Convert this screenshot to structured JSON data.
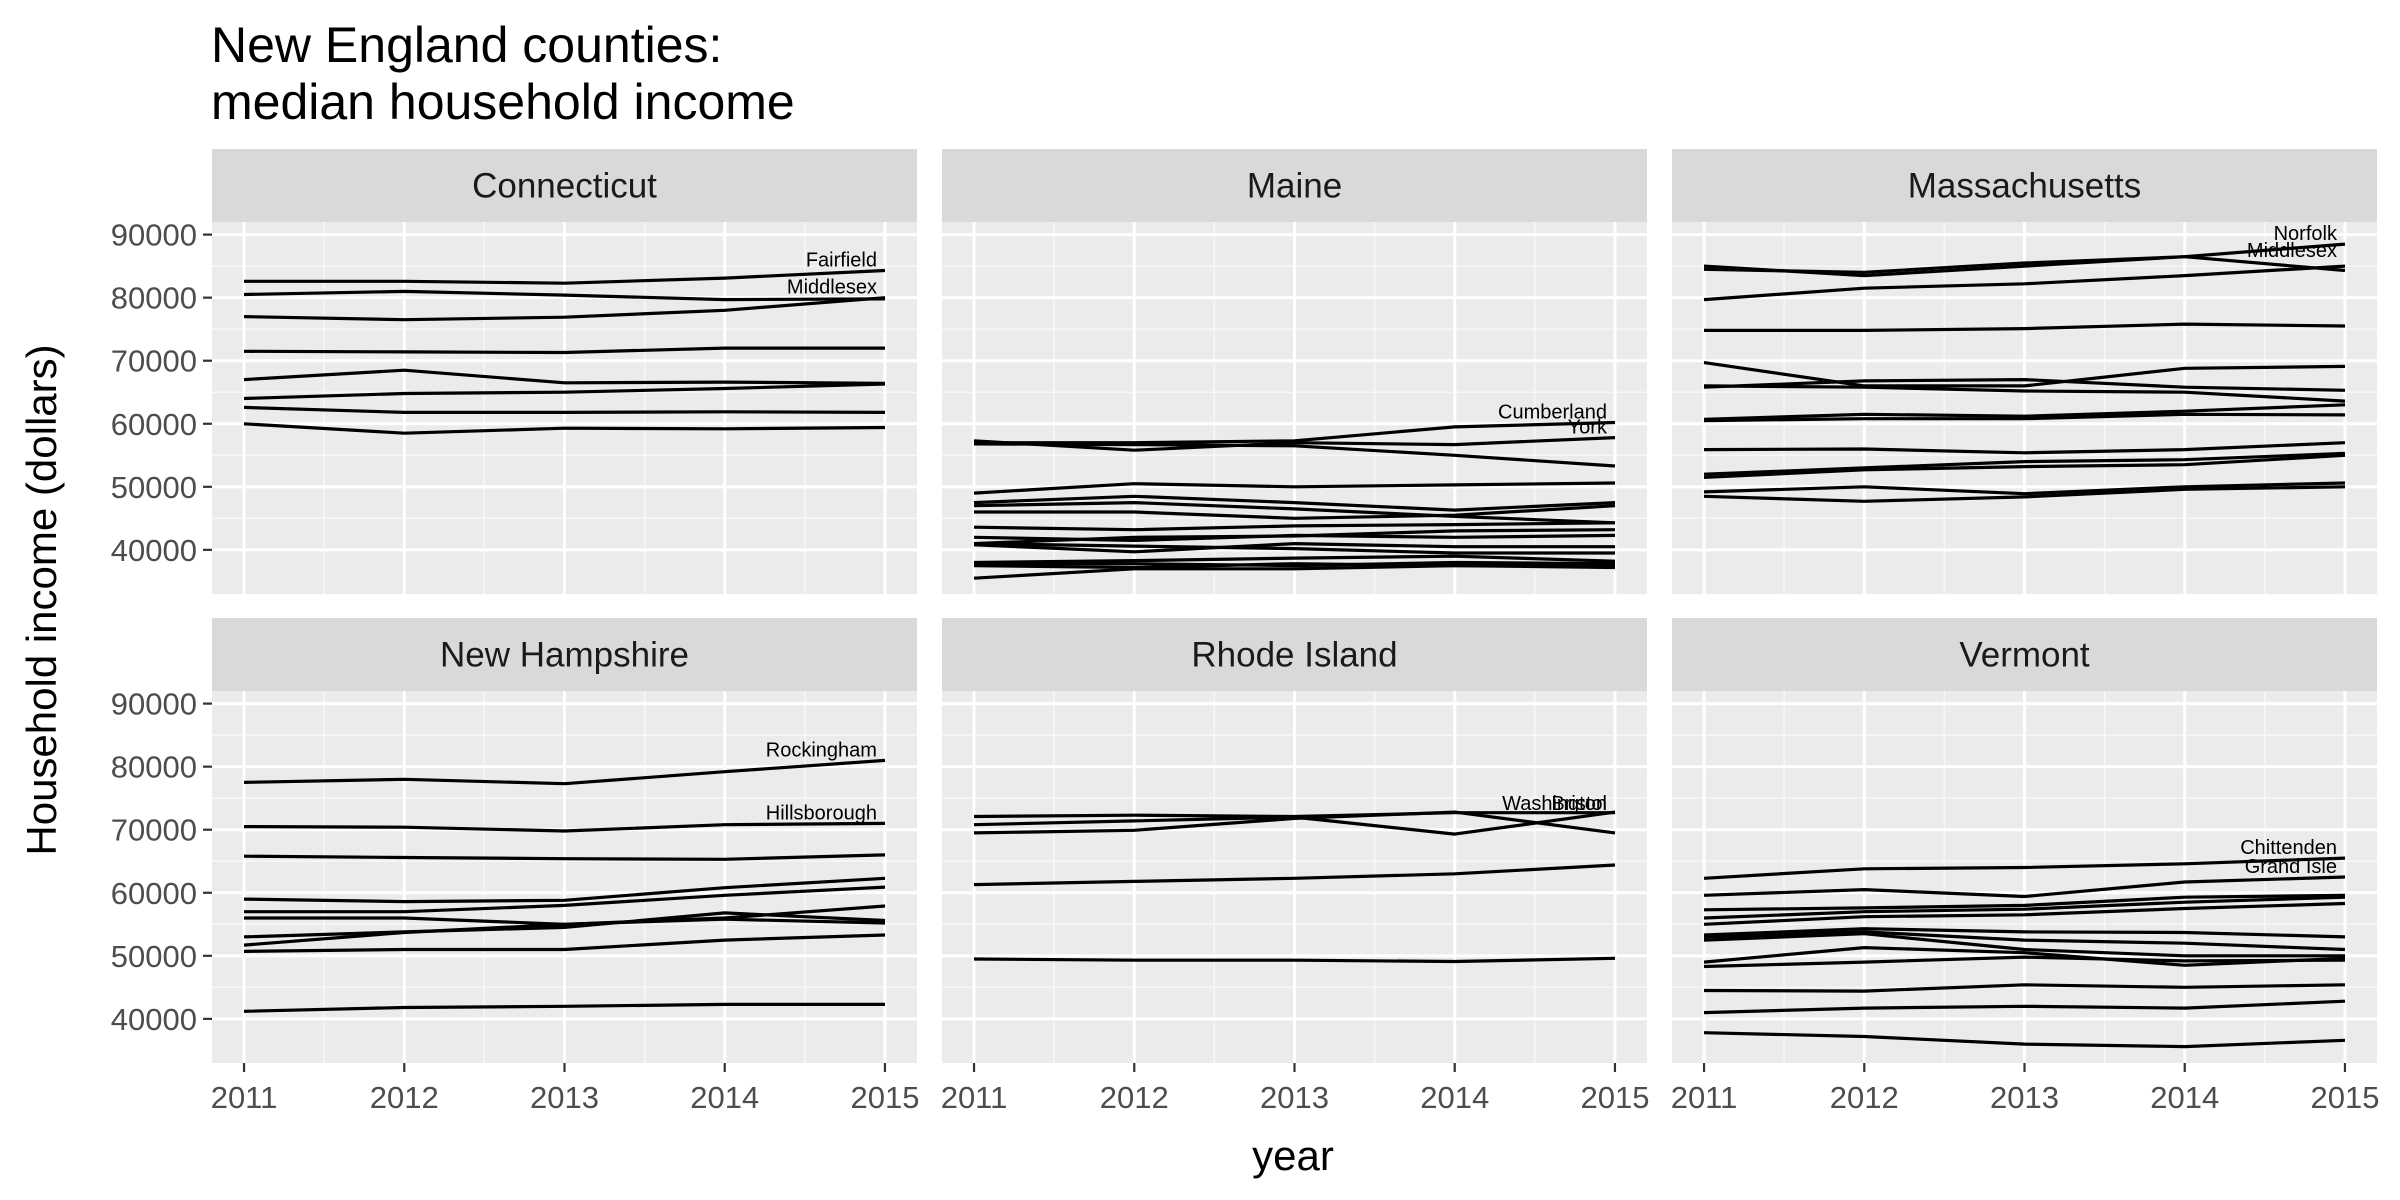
{
  "title": [
    "New England counties:",
    "median household income"
  ],
  "xlabel": "year",
  "ylabel": "Household income (dollars)",
  "chart_data": {
    "type": "line",
    "title": "New England counties: median household income",
    "xlabel": "year",
    "ylabel": "Household income (dollars)",
    "x": [
      2011,
      2012,
      2013,
      2014,
      2015
    ],
    "xlim": [
      2010.8,
      2015.2
    ],
    "ylim": [
      33000,
      92000
    ],
    "y_ticks": [
      40000,
      50000,
      60000,
      70000,
      80000,
      90000
    ],
    "x_ticks": [
      2011,
      2012,
      2013,
      2014,
      2015
    ],
    "grid": true,
    "facets": [
      {
        "name": "Connecticut",
        "labels": [
          {
            "text": "Fairfield",
            "y": 84300
          },
          {
            "text": "Middlesex",
            "y": 80000
          }
        ],
        "series": [
          {
            "name": "Fairfield",
            "values": [
              82600,
              82600,
              82300,
              83100,
              84300
            ]
          },
          {
            "name": "Middlesex",
            "values": [
              80500,
              81000,
              80400,
              79700,
              79800
            ]
          },
          {
            "values": [
              77000,
              76500,
              76900,
              78000,
              80000
            ]
          },
          {
            "values": [
              71500,
              71400,
              71300,
              72000,
              72000
            ]
          },
          {
            "values": [
              67000,
              68500,
              66500,
              66600,
              66400
            ]
          },
          {
            "values": [
              64000,
              64800,
              65000,
              65600,
              66300
            ]
          },
          {
            "values": [
              62600,
              61800,
              61800,
              61900,
              61800
            ]
          },
          {
            "values": [
              60000,
              58500,
              59300,
              59200,
              59400
            ]
          }
        ]
      },
      {
        "name": "Maine",
        "labels": [
          {
            "text": "Cumberland",
            "y": 60200
          },
          {
            "text": "York",
            "y": 57800
          }
        ],
        "series": [
          {
            "name": "Cumberland",
            "values": [
              57000,
              57000,
              57300,
              59500,
              60200
            ]
          },
          {
            "name": "York",
            "values": [
              57300,
              55800,
              57000,
              56700,
              57800
            ]
          },
          {
            "values": [
              56800,
              56700,
              56500,
              55000,
              53300
            ]
          },
          {
            "values": [
              49000,
              50500,
              50000,
              50300,
              50600
            ]
          },
          {
            "values": [
              47500,
              48500,
              47500,
              46300,
              47500
            ]
          },
          {
            "values": [
              47000,
              47500,
              46500,
              45300,
              44300
            ]
          },
          {
            "values": [
              46000,
              46000,
              45000,
              45500,
              47000
            ]
          },
          {
            "values": [
              43600,
              43200,
              43800,
              44000,
              44300
            ]
          },
          {
            "values": [
              41000,
              42000,
              42200,
              43000,
              43200
            ]
          },
          {
            "values": [
              42000,
              41500,
              42300,
              42000,
              42300
            ]
          },
          {
            "values": [
              40800,
              39700,
              41000,
              40500,
              40500
            ]
          },
          {
            "values": [
              41000,
              40600,
              40200,
              39500,
              39500
            ]
          },
          {
            "values": [
              38000,
              38300,
              38700,
              39000,
              38200
            ]
          },
          {
            "values": [
              37800,
              37800,
              37500,
              38000,
              37800
            ]
          },
          {
            "values": [
              37500,
              37200,
              37800,
              37500,
              37200
            ]
          },
          {
            "values": [
              35500,
              37000,
              37000,
              37500,
              37500
            ]
          }
        ]
      },
      {
        "name": "Massachusetts",
        "labels": [
          {
            "text": "Norfolk",
            "y": 88500
          },
          {
            "text": "Middlesex",
            "y": 85800
          }
        ],
        "series": [
          {
            "name": "Norfolk",
            "values": [
              84500,
              84000,
              85500,
              86500,
              88500
            ]
          },
          {
            "name": "Middlesex",
            "values": [
              85000,
              83500,
              85000,
              86500,
              84300
            ]
          },
          {
            "values": [
              79700,
              81500,
              82200,
              83500,
              85000
            ]
          },
          {
            "values": [
              74800,
              74800,
              75100,
              75800,
              75500
            ]
          },
          {
            "values": [
              69700,
              66000,
              66000,
              68800,
              69100
            ]
          },
          {
            "values": [
              65800,
              66800,
              67000,
              65800,
              65300
            ]
          },
          {
            "values": [
              66000,
              65800,
              65200,
              65000,
              63600
            ]
          },
          {
            "values": [
              60700,
              61500,
              61200,
              62000,
              63000
            ]
          },
          {
            "values": [
              60500,
              60800,
              60800,
              61500,
              61400
            ]
          },
          {
            "values": [
              55900,
              56000,
              55400,
              55900,
              57000
            ]
          },
          {
            "values": [
              52000,
              53000,
              54000,
              54300,
              55300
            ]
          },
          {
            "values": [
              51500,
              52700,
              53200,
              53500,
              55000
            ]
          },
          {
            "values": [
              49200,
              50000,
              48900,
              50000,
              50600
            ]
          },
          {
            "values": [
              48500,
              47700,
              48400,
              49600,
              50000
            ]
          }
        ]
      },
      {
        "name": "New Hampshire",
        "labels": [
          {
            "text": "Rockingham",
            "y": 81000
          },
          {
            "text": "Hillsborough",
            "y": 71000
          }
        ],
        "series": [
          {
            "name": "Rockingham",
            "values": [
              77500,
              78000,
              77300,
              79200,
              81000
            ]
          },
          {
            "name": "Hillsborough",
            "values": [
              70500,
              70400,
              69800,
              70800,
              71000
            ]
          },
          {
            "values": [
              65800,
              65600,
              65400,
              65300,
              66000
            ]
          },
          {
            "values": [
              59000,
              58600,
              58800,
              60800,
              62300
            ]
          },
          {
            "values": [
              57000,
              57000,
              58000,
              59600,
              60900
            ]
          },
          {
            "values": [
              56000,
              56000,
              55000,
              56000,
              57900
            ]
          },
          {
            "values": [
              53000,
              53800,
              54500,
              56800,
              55600
            ]
          },
          {
            "values": [
              51700,
              53700,
              55000,
              55800,
              55200
            ]
          },
          {
            "values": [
              50700,
              51000,
              51000,
              52500,
              53300
            ]
          },
          {
            "values": [
              41200,
              41800,
              42000,
              42300,
              42300
            ]
          }
        ]
      },
      {
        "name": "Rhode Island",
        "labels": [
          {
            "text": "Washington",
            "y": 72500
          },
          {
            "text": "Bristol",
            "y": 72500
          }
        ],
        "series": [
          {
            "name": "Washington",
            "values": [
              72100,
              72300,
              72100,
              72700,
              72700
            ]
          },
          {
            "name": "Bristol",
            "values": [
              70800,
              71400,
              72000,
              69300,
              72800
            ]
          },
          {
            "values": [
              69500,
              69900,
              71800,
              72800,
              69500
            ]
          },
          {
            "values": [
              61300,
              61800,
              62300,
              63000,
              64400
            ]
          },
          {
            "values": [
              49500,
              49300,
              49300,
              49100,
              49600
            ]
          }
        ]
      },
      {
        "name": "Vermont",
        "labels": [
          {
            "text": "Chittenden",
            "y": 65500
          },
          {
            "text": "Grand Isle",
            "y": 62500
          }
        ],
        "series": [
          {
            "name": "Chittenden",
            "values": [
              62300,
              63800,
              64000,
              64600,
              65500
            ]
          },
          {
            "name": "Grand Isle",
            "values": [
              59600,
              60500,
              59400,
              61700,
              62500
            ]
          },
          {
            "values": [
              57300,
              57600,
              58000,
              59300,
              59600
            ]
          },
          {
            "values": [
              56000,
              57000,
              57400,
              58500,
              59300
            ]
          },
          {
            "values": [
              55000,
              56200,
              56500,
              57500,
              58300
            ]
          },
          {
            "values": [
              53300,
              54300,
              53800,
              53700,
              53000
            ]
          },
          {
            "values": [
              53000,
              53800,
              52500,
              52000,
              51000
            ]
          },
          {
            "values": [
              52500,
              53500,
              51000,
              50000,
              50000
            ]
          },
          {
            "values": [
              49000,
              51300,
              50500,
              48500,
              49600
            ]
          },
          {
            "values": [
              48300,
              49000,
              49800,
              49200,
              49300
            ]
          },
          {
            "values": [
              44500,
              44400,
              45400,
              45000,
              45400
            ]
          },
          {
            "values": [
              41000,
              41700,
              42000,
              41700,
              42800
            ]
          },
          {
            "values": [
              37800,
              37200,
              36000,
              35600,
              36600
            ]
          }
        ]
      }
    ]
  }
}
